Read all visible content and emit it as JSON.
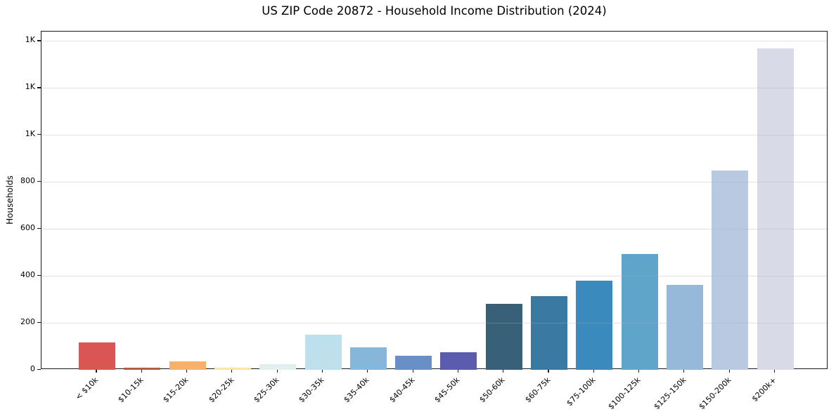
{
  "chart_data": {
    "type": "bar",
    "title": "US ZIP Code 20872 - Household Income Distribution (2024)",
    "xlabel": "",
    "ylabel": "Households",
    "categories": [
      "< $10k",
      "$10-15k",
      "$15-20k",
      "$20-25k",
      "$25-30k",
      "$30-35k",
      "$35-40k",
      "$40-45k",
      "$45-50k",
      "$50-60k",
      "$60-75k",
      "$75-100k",
      "$100-125k",
      "$125-150k",
      "$150-200k",
      "$200k+"
    ],
    "values": [
      116,
      8,
      37,
      10,
      24,
      148,
      97,
      60,
      75,
      282,
      315,
      380,
      493,
      362,
      848,
      1368
    ],
    "bar_colors": [
      "#d95654",
      "#b25c4b",
      "#f8b168",
      "#f9e5a6",
      "#e2eff1",
      "#bee0ec",
      "#86b6d9",
      "#6a8ec6",
      "#5b5cae",
      "#386079",
      "#3a79a1",
      "#3a8abd",
      "#5fa5c9",
      "#96b9da",
      "#bac9e2",
      "#d8dae8"
    ],
    "yticks": {
      "values": [
        0,
        200,
        400,
        600,
        800,
        1000,
        1200,
        1400
      ],
      "labels": [
        "0",
        "200",
        "400",
        "600",
        "800",
        "1K",
        "1K",
        "1K"
      ]
    },
    "ylim": [
      0,
      1440
    ],
    "grid": "horizontal",
    "legend": "none",
    "background_color": "#ffffff",
    "axis_color": "#1a1a1a"
  }
}
